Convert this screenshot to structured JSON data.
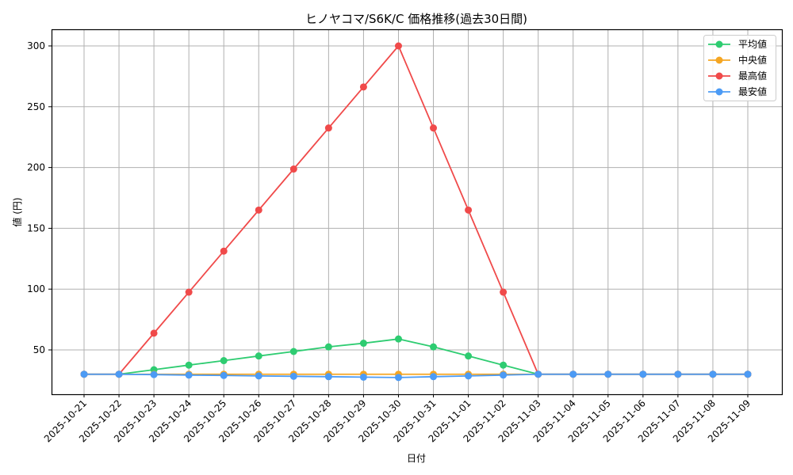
{
  "chart_data": {
    "type": "line",
    "title": "ヒノヤコマ/S6K/C 価格推移(過去30日間)",
    "xlabel": "日付",
    "ylabel": "値 (円)",
    "ylim": [
      13,
      313
    ],
    "yticks": [
      50,
      100,
      150,
      200,
      250,
      300
    ],
    "grid": true,
    "legend_position": "upper right",
    "categories": [
      "2025-10-21",
      "2025-10-22",
      "2025-10-23",
      "2025-10-24",
      "2025-10-25",
      "2025-10-26",
      "2025-10-27",
      "2025-10-28",
      "2025-10-29",
      "2025-10-30",
      "2025-10-31",
      "2025-11-01",
      "2025-11-02",
      "2025-11-03",
      "2025-11-04",
      "2025-11-05",
      "2025-11-06",
      "2025-11-07",
      "2025-11-08",
      "2025-11-09"
    ],
    "series": [
      {
        "name": "平均値",
        "color": "#2ecc71",
        "values": [
          30,
          30,
          33.7,
          37.5,
          41.2,
          45,
          48.7,
          52.5,
          55.5,
          59,
          52.5,
          45,
          37.5,
          30,
          30,
          30,
          30,
          30,
          30,
          30
        ]
      },
      {
        "name": "中央値",
        "color": "#f5a623",
        "values": [
          30,
          30,
          30,
          30,
          30,
          30,
          30,
          30,
          30,
          30,
          30,
          30,
          30,
          30,
          30,
          30,
          30,
          30,
          30,
          30
        ]
      },
      {
        "name": "最高値",
        "color": "#f04a4a",
        "values": [
          30,
          30,
          63.75,
          97.5,
          131.25,
          165,
          198.75,
          232.5,
          266.25,
          300,
          232.5,
          165,
          97.5,
          30,
          30,
          30,
          30,
          30,
          30,
          30
        ]
      },
      {
        "name": "最安値",
        "color": "#4c9bf5",
        "values": [
          30,
          30,
          29.7,
          29.3,
          29,
          28.6,
          28.3,
          28,
          27.6,
          27.3,
          28,
          28.6,
          29.3,
          30,
          30,
          30,
          30,
          30,
          30,
          30
        ]
      }
    ]
  }
}
